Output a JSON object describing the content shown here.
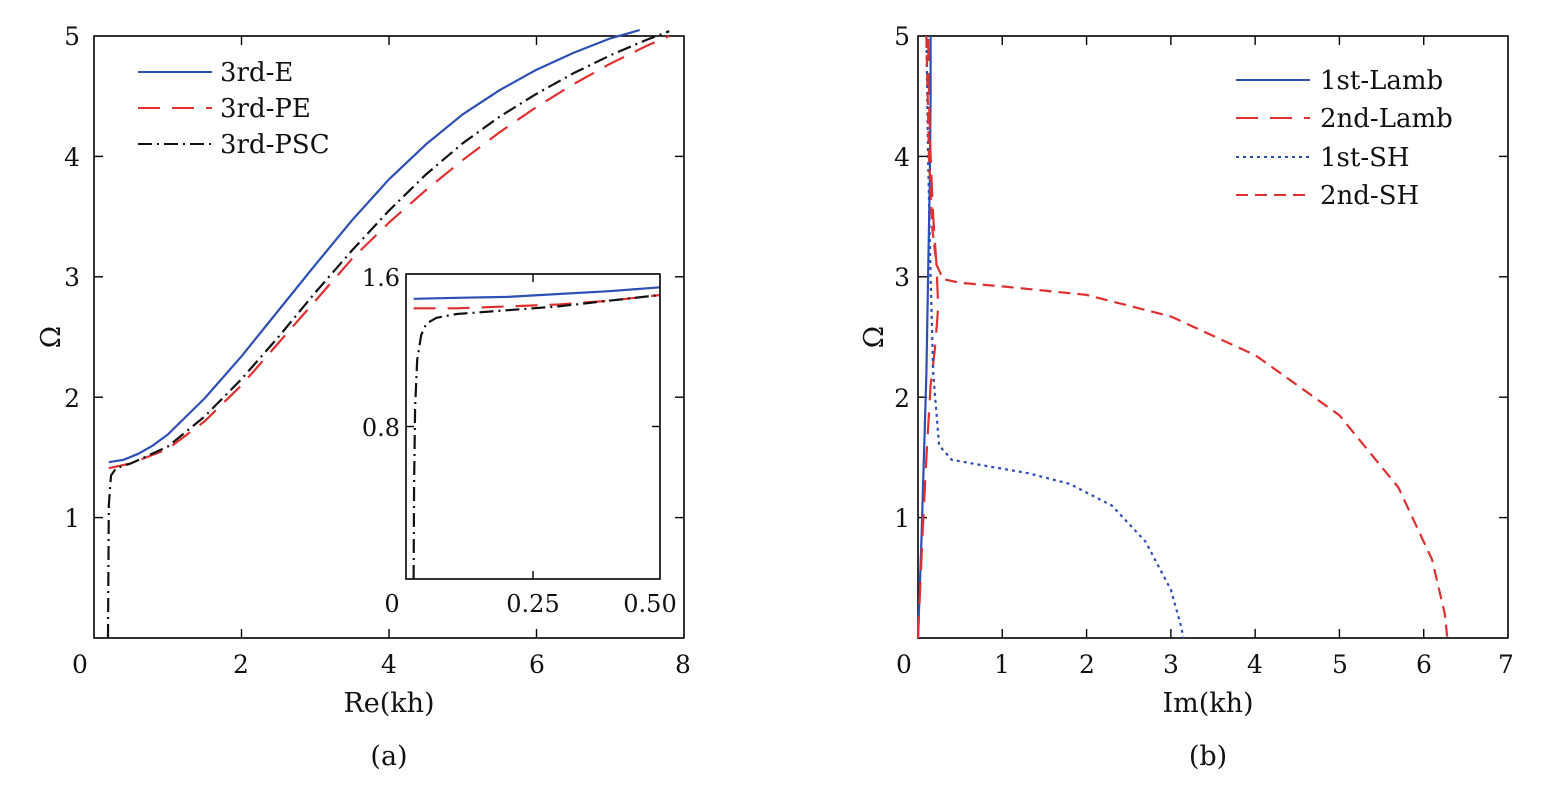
{
  "panels": [
    {
      "panel_label": "(a)",
      "xlabel": "Re(kh)",
      "ylabel": "Ω",
      "xlim": [
        0,
        8
      ],
      "ylim": [
        0,
        5
      ],
      "xticks": [
        "0",
        "2",
        "4",
        "6",
        "8"
      ],
      "yticks": [
        "1",
        "2",
        "3",
        "4",
        "5"
      ],
      "legend_position": "top-left"
    },
    {
      "panel_label": "(b)",
      "xlabel": "Im(kh)",
      "ylabel": "Ω",
      "xlim": [
        0,
        7
      ],
      "ylim": [
        0,
        5
      ],
      "xticks": [
        "0",
        "1",
        "2",
        "3",
        "4",
        "5",
        "6",
        "7"
      ],
      "yticks": [
        "1",
        "2",
        "3",
        "4",
        "5"
      ],
      "legend_position": "top-right"
    }
  ],
  "inset": {
    "xlim": [
      0,
      0.5
    ],
    "ylim": [
      0,
      1.6
    ],
    "xticks": [
      "0",
      "0.25",
      "0.50"
    ],
    "yticks": [
      "0.8",
      "1.6"
    ]
  },
  "colors": {
    "blue": "#2b4fb5",
    "red": "#e03030",
    "black": "#111111"
  },
  "chart_data": [
    {
      "type": "line",
      "xlabel": "Re(kh)",
      "ylabel": "Ω",
      "xlim": [
        0,
        8
      ],
      "ylim": [
        0,
        5
      ],
      "grid": false,
      "legend": "top-left",
      "series": [
        {
          "name": "3rd-E",
          "color": "#2b4fb5",
          "dash": "solid",
          "x": [
            0.2,
            0.4,
            0.6,
            0.8,
            1.0,
            1.5,
            2.0,
            2.5,
            3.0,
            3.5,
            4.0,
            4.5,
            5.0,
            5.5,
            6.0,
            6.5,
            7.0,
            7.4
          ],
          "y": [
            1.46,
            1.48,
            1.53,
            1.6,
            1.69,
            1.99,
            2.34,
            2.72,
            3.1,
            3.47,
            3.81,
            4.1,
            4.35,
            4.55,
            4.72,
            4.86,
            4.98,
            5.05
          ]
        },
        {
          "name": "3rd-PE",
          "color": "#e03030",
          "dash": "long",
          "x": [
            0.2,
            0.5,
            1.0,
            1.5,
            2.0,
            2.5,
            3.0,
            3.5,
            4.0,
            4.5,
            5.0,
            5.5,
            6.0,
            6.5,
            7.0,
            7.5,
            7.8
          ],
          "y": [
            1.41,
            1.45,
            1.57,
            1.8,
            2.1,
            2.45,
            2.8,
            3.15,
            3.45,
            3.72,
            3.97,
            4.2,
            4.41,
            4.6,
            4.77,
            4.92,
            5.0
          ]
        },
        {
          "name": "3rd-PSC",
          "color": "#111111",
          "dash": "dashdot",
          "x": [
            0.19,
            0.2,
            0.23,
            0.3,
            0.5,
            1.0,
            1.5,
            2.0,
            2.5,
            3.0,
            3.5,
            4.0,
            4.5,
            5.0,
            5.5,
            6.0,
            6.5,
            7.0,
            7.5,
            7.8
          ],
          "y": [
            0.0,
            1.1,
            1.35,
            1.41,
            1.45,
            1.59,
            1.84,
            2.15,
            2.5,
            2.87,
            3.22,
            3.55,
            3.85,
            4.11,
            4.33,
            4.52,
            4.69,
            4.84,
            4.97,
            5.04
          ]
        }
      ],
      "inset": {
        "xlim": [
          0,
          0.5
        ],
        "ylim": [
          0,
          1.6
        ],
        "series": [
          {
            "name": "3rd-E",
            "x": [
              0.015,
              0.1,
              0.2,
              0.3,
              0.4,
              0.5
            ],
            "y": [
              1.47,
              1.475,
              1.48,
              1.495,
              1.51,
              1.53
            ]
          },
          {
            "name": "3rd-PE",
            "x": [
              0.015,
              0.05,
              0.1,
              0.2,
              0.3,
              0.4,
              0.5
            ],
            "y": [
              1.42,
              1.42,
              1.42,
              1.43,
              1.44,
              1.46,
              1.49
            ]
          },
          {
            "name": "3rd-PSC",
            "x": [
              0.015,
              0.016,
              0.018,
              0.022,
              0.03,
              0.04,
              0.06,
              0.1,
              0.2,
              0.3,
              0.4,
              0.5
            ],
            "y": [
              0.0,
              0.5,
              0.9,
              1.15,
              1.28,
              1.34,
              1.37,
              1.39,
              1.41,
              1.43,
              1.46,
              1.49
            ]
          }
        ]
      }
    },
    {
      "type": "line",
      "xlabel": "Im(kh)",
      "ylabel": "Ω",
      "xlim": [
        0,
        7
      ],
      "ylim": [
        0,
        5
      ],
      "grid": false,
      "legend": "top-right",
      "series": [
        {
          "name": "1st-Lamb",
          "color": "#2b4fb5",
          "dash": "solid",
          "x": [
            0.0,
            0.04,
            0.07,
            0.1,
            0.12,
            0.14,
            0.15,
            0.15
          ],
          "y": [
            0.0,
            0.8,
            1.5,
            2.2,
            3.0,
            3.8,
            4.5,
            5.0
          ]
        },
        {
          "name": "2nd-Lamb",
          "color": "#e03030",
          "dash": "long",
          "x": [
            0.0,
            0.05,
            0.1,
            0.15,
            0.2,
            0.24,
            0.22,
            0.18,
            0.15,
            0.13,
            0.12
          ],
          "y": [
            0.0,
            0.8,
            1.5,
            2.1,
            2.4,
            2.75,
            3.1,
            3.5,
            4.0,
            4.5,
            5.0
          ]
        },
        {
          "name": "1st-SH",
          "color": "#2b4fb5",
          "dash": "dotted",
          "x": [
            0.1,
            0.12,
            0.15,
            0.18,
            0.25,
            0.4,
            0.8,
            1.3,
            1.8,
            2.3,
            2.7,
            3.0,
            3.12,
            3.15
          ],
          "y": [
            5.0,
            4.0,
            3.0,
            2.2,
            1.6,
            1.48,
            1.43,
            1.37,
            1.28,
            1.1,
            0.8,
            0.4,
            0.1,
            0.0
          ]
        },
        {
          "name": "2nd-SH",
          "color": "#e03030",
          "dash": "medium",
          "x": [
            0.1,
            0.13,
            0.17,
            0.22,
            0.3,
            0.5,
            1.0,
            2.0,
            3.0,
            4.0,
            5.0,
            5.7,
            6.1,
            6.25,
            6.28
          ],
          "y": [
            5.0,
            4.0,
            3.4,
            3.1,
            2.98,
            2.95,
            2.92,
            2.85,
            2.67,
            2.35,
            1.85,
            1.25,
            0.65,
            0.2,
            0.0
          ]
        }
      ]
    }
  ]
}
